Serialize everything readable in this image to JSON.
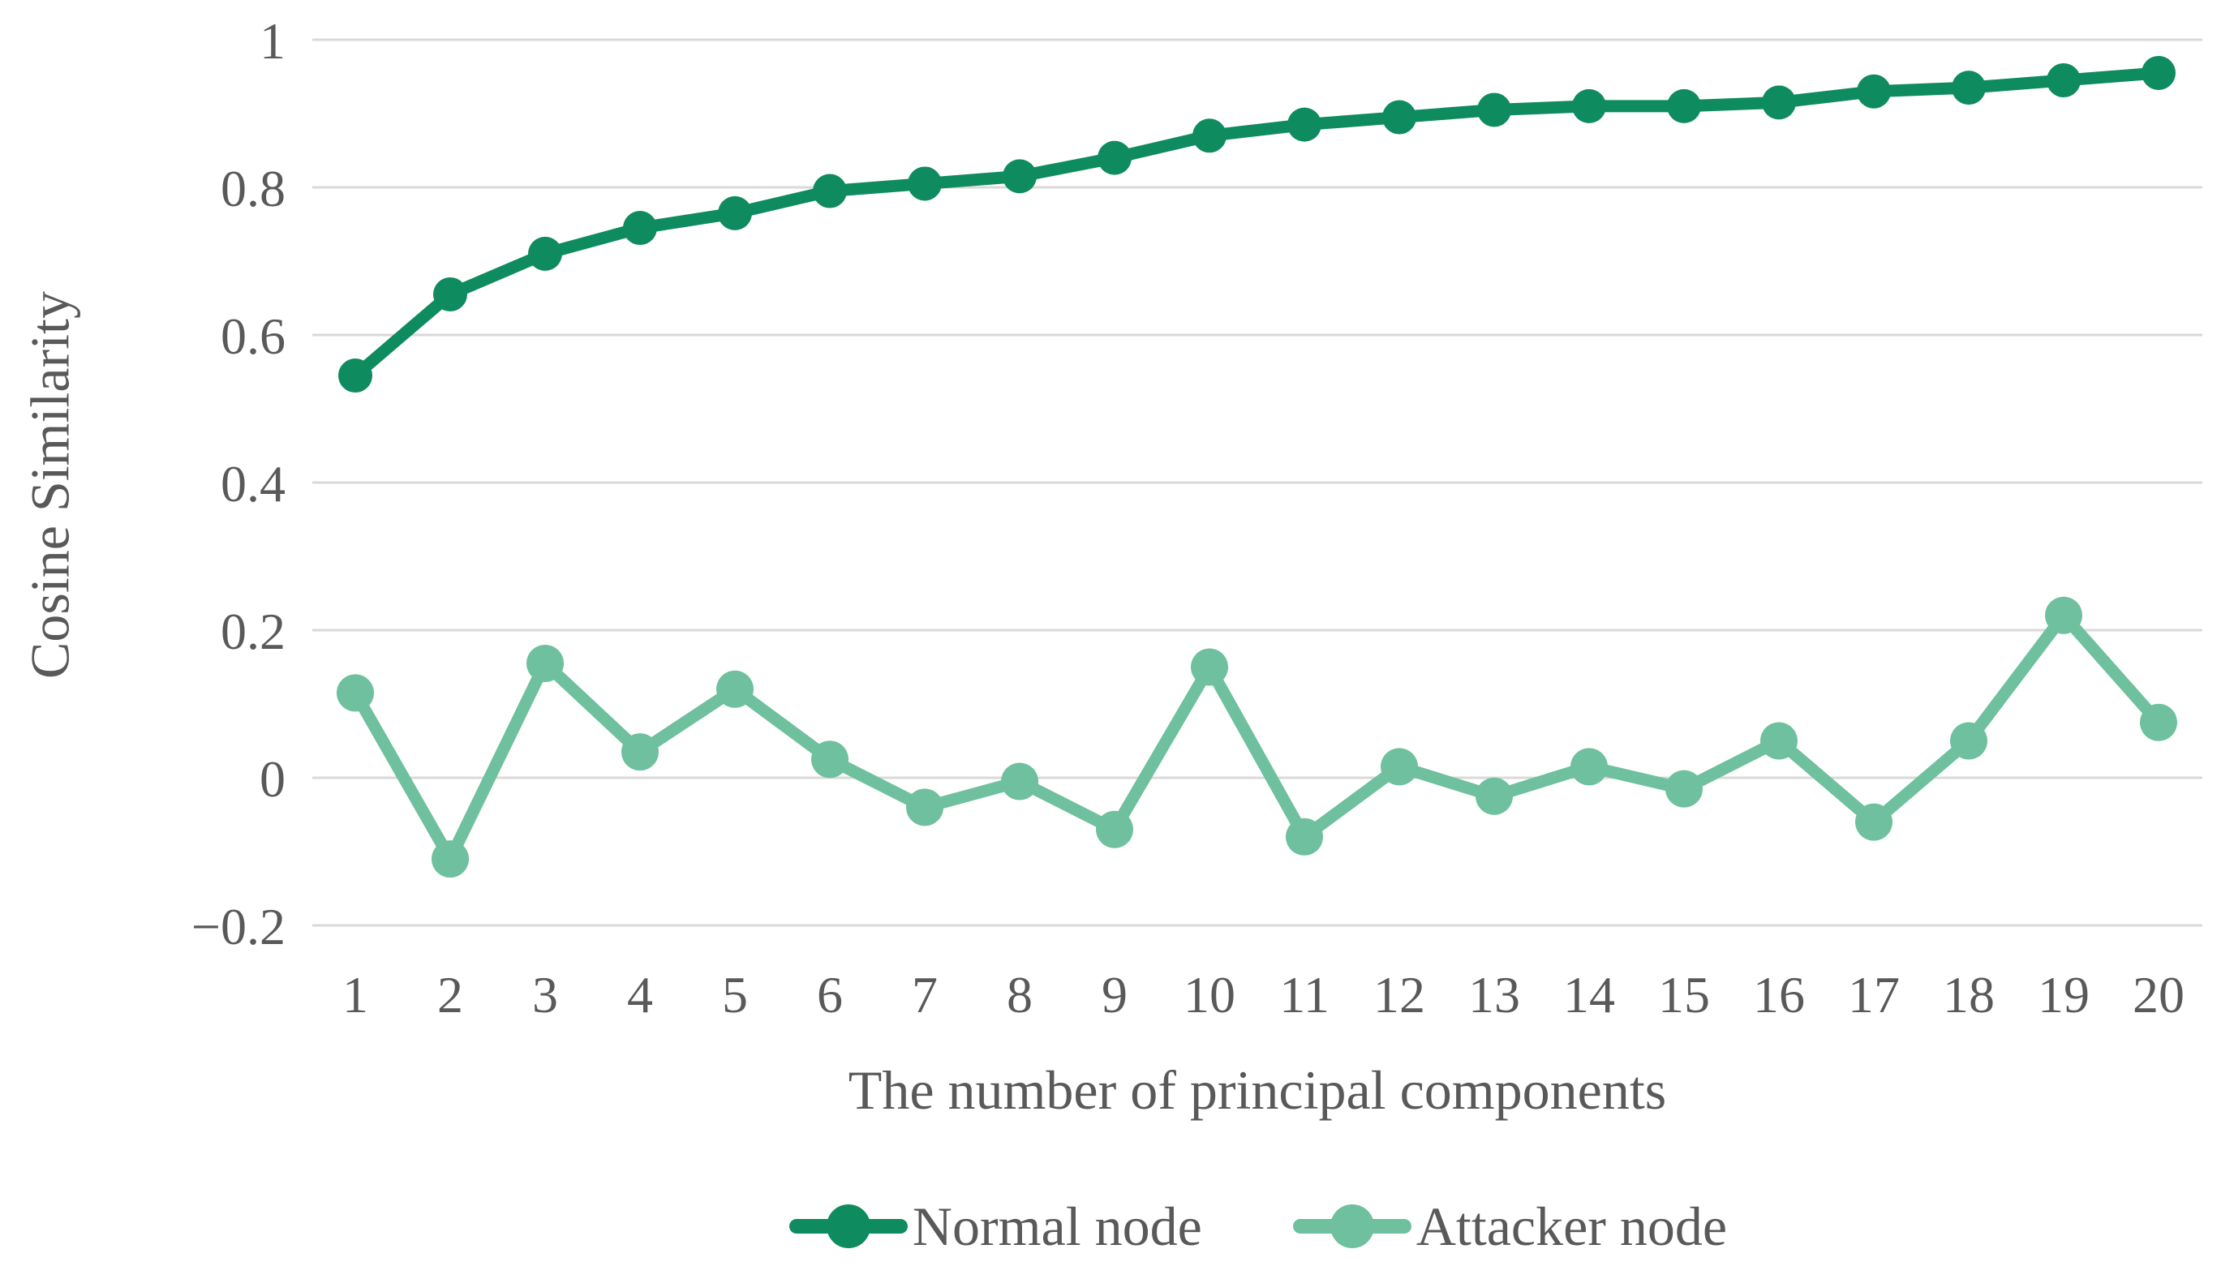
{
  "chart_data": {
    "type": "line",
    "title": "",
    "xlabel": "The number of principal components",
    "ylabel": "Cosine Similarity",
    "x": [
      1,
      2,
      3,
      4,
      5,
      6,
      7,
      8,
      9,
      10,
      11,
      12,
      13,
      14,
      15,
      16,
      17,
      18,
      19,
      20
    ],
    "series": [
      {
        "name": "Normal node",
        "color": "#0f8b60",
        "values": [
          0.545,
          0.655,
          0.71,
          0.745,
          0.765,
          0.795,
          0.805,
          0.815,
          0.84,
          0.87,
          0.885,
          0.895,
          0.905,
          0.91,
          0.91,
          0.915,
          0.93,
          0.935,
          0.945,
          0.955
        ]
      },
      {
        "name": "Attacker node",
        "color": "#6fc09e",
        "values": [
          0.115,
          -0.11,
          0.155,
          0.035,
          0.12,
          0.025,
          -0.04,
          -0.005,
          -0.07,
          0.15,
          -0.08,
          0.015,
          -0.025,
          0.015,
          -0.015,
          0.05,
          -0.06,
          0.05,
          0.22,
          0.075
        ]
      }
    ],
    "yticks": [
      {
        "v": 1,
        "label": "1"
      },
      {
        "v": 0.8,
        "label": "0.8"
      },
      {
        "v": 0.6,
        "label": "0.6"
      },
      {
        "v": 0.4,
        "label": "0.4"
      },
      {
        "v": 0.2,
        "label": "0.2"
      },
      {
        "v": 0,
        "label": "0"
      },
      {
        "v": -0.2,
        "label": "−0.2"
      }
    ],
    "ylim": [
      -0.2,
      1
    ],
    "xlim": [
      1,
      20
    ],
    "grid": "horizontal",
    "gridline_color": "#d9d9d9",
    "axis_text_color": "#595959",
    "legend_position": "bottom"
  }
}
